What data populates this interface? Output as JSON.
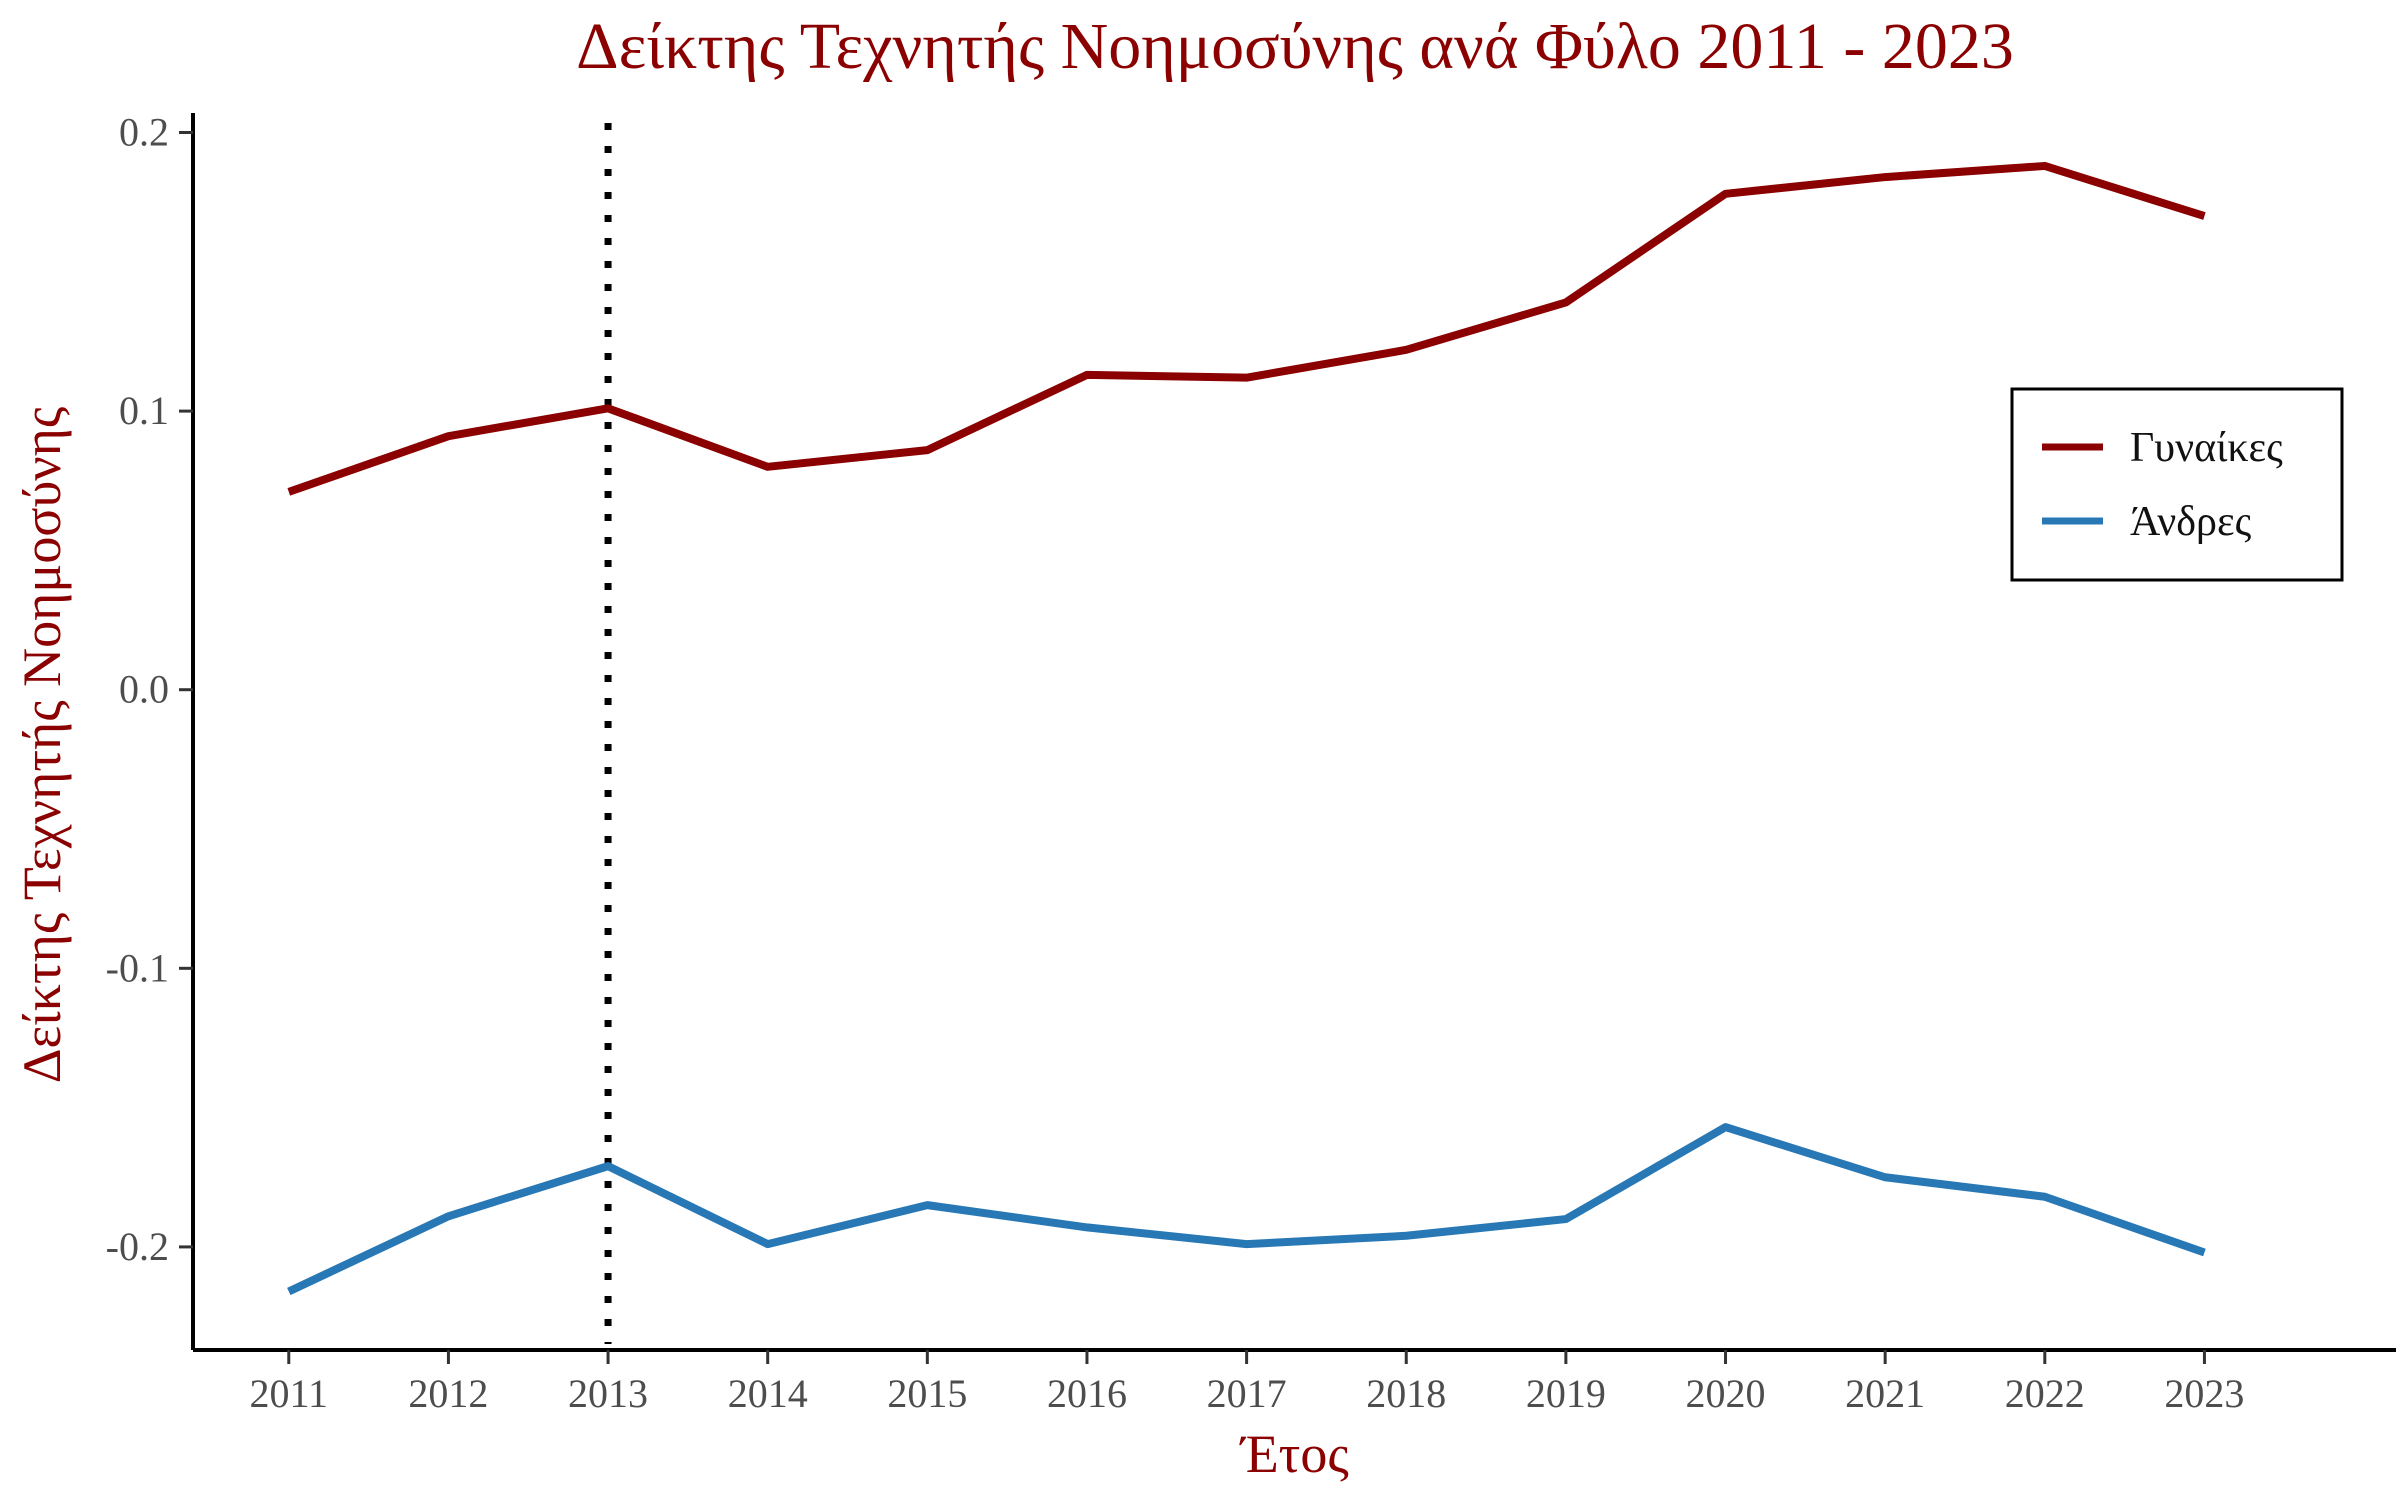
{
  "chart_data": {
    "type": "line",
    "title": "Δείκτης Τεχνητής Νοημοσύνης ανά Φύλο 2011 - 2023",
    "xlabel": "Έτος",
    "ylabel": "Δείκτης Τεχνητής Νοημοσύνης",
    "x": [
      2011,
      2012,
      2013,
      2014,
      2015,
      2016,
      2017,
      2018,
      2019,
      2020,
      2021,
      2022,
      2023
    ],
    "x_tick_labels": [
      "2011",
      "2012",
      "2013",
      "2014",
      "2015",
      "2016",
      "2017",
      "2018",
      "2019",
      "2020",
      "2021",
      "2022",
      "2023"
    ],
    "y_ticks": [
      -0.2,
      -0.1,
      0.0,
      0.1,
      0.2
    ],
    "y_tick_labels": [
      "-0.2",
      "-0.1",
      "0.0",
      "0.1",
      "0.2"
    ],
    "xlim": [
      2010.4,
      2024.2
    ],
    "ylim": [
      -0.237,
      0.207
    ],
    "vline": {
      "x": 2013,
      "style": "dotted",
      "color": "#000000"
    },
    "series": [
      {
        "name": "Γυναίκες",
        "color": "#8b0000",
        "values": [
          0.071,
          0.091,
          0.101,
          0.08,
          0.086,
          0.113,
          0.112,
          0.122,
          0.139,
          0.178,
          0.184,
          0.188,
          0.17
        ]
      },
      {
        "name": "Άνδρες",
        "color": "#2878b5",
        "values": [
          -0.216,
          -0.189,
          -0.171,
          -0.199,
          -0.185,
          -0.193,
          -0.199,
          -0.196,
          -0.19,
          -0.157,
          -0.175,
          -0.182,
          -0.202
        ]
      }
    ],
    "grid": false,
    "legend_position": "right",
    "title_color": "#8b0000",
    "axis_title_color": "#8b0000"
  }
}
